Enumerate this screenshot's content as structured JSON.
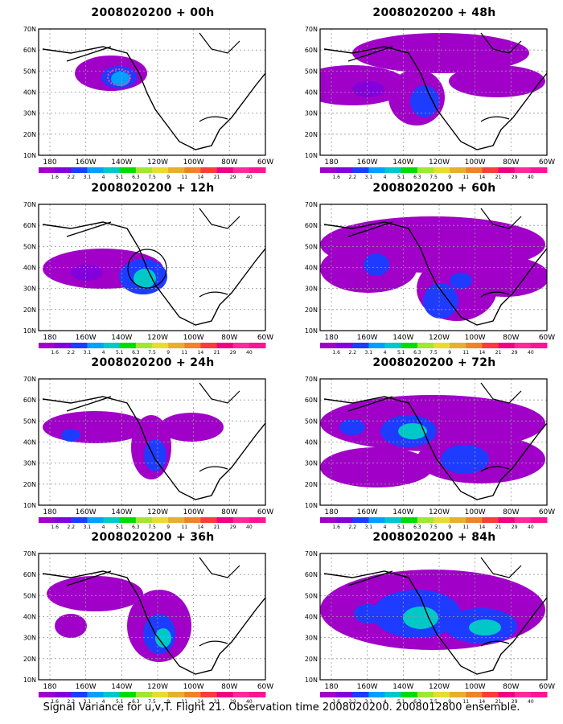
{
  "panels": [
    {
      "title": "2008020200 + 00h",
      "hours": 0
    },
    {
      "title": "2008020200 + 48h",
      "hours": 48
    },
    {
      "title": "2008020200 + 12h",
      "hours": 12
    },
    {
      "title": "2008020200 + 60h",
      "hours": 60
    },
    {
      "title": "2008020200 + 24h",
      "hours": 24
    },
    {
      "title": "2008020200 + 72h",
      "hours": 72
    },
    {
      "title": "2008020200 + 36h",
      "hours": 36
    },
    {
      "title": "2008020200 + 84h",
      "hours": 84
    }
  ],
  "lat_labels": [
    "70N",
    "60N",
    "50N",
    "40N",
    "30N",
    "20N",
    "10N"
  ],
  "lon_labels": [
    "180",
    "160W",
    "140W",
    "120W",
    "100W",
    "80W",
    "60W"
  ],
  "colorbar": {
    "labels": [
      "1.6",
      "2.2",
      "3.1",
      "4",
      "5.1",
      "6.3",
      "7.5",
      "9",
      "11",
      "14",
      "21",
      "29",
      "40"
    ],
    "colors": [
      "#a000c8",
      "#8200dc",
      "#1e3cff",
      "#00a0ff",
      "#00c8c8",
      "#00dc00",
      "#a0e632",
      "#e6dc32",
      "#e6af2d",
      "#f08228",
      "#fa3c3c",
      "#f00082",
      "#ff2a9a",
      "#ff1493"
    ]
  },
  "footer": "Signal Variance for u,v,T. Flight 21. Observation time 2008020200. 2008012800 ensemble.",
  "marker_color": "#ff3fa5"
}
